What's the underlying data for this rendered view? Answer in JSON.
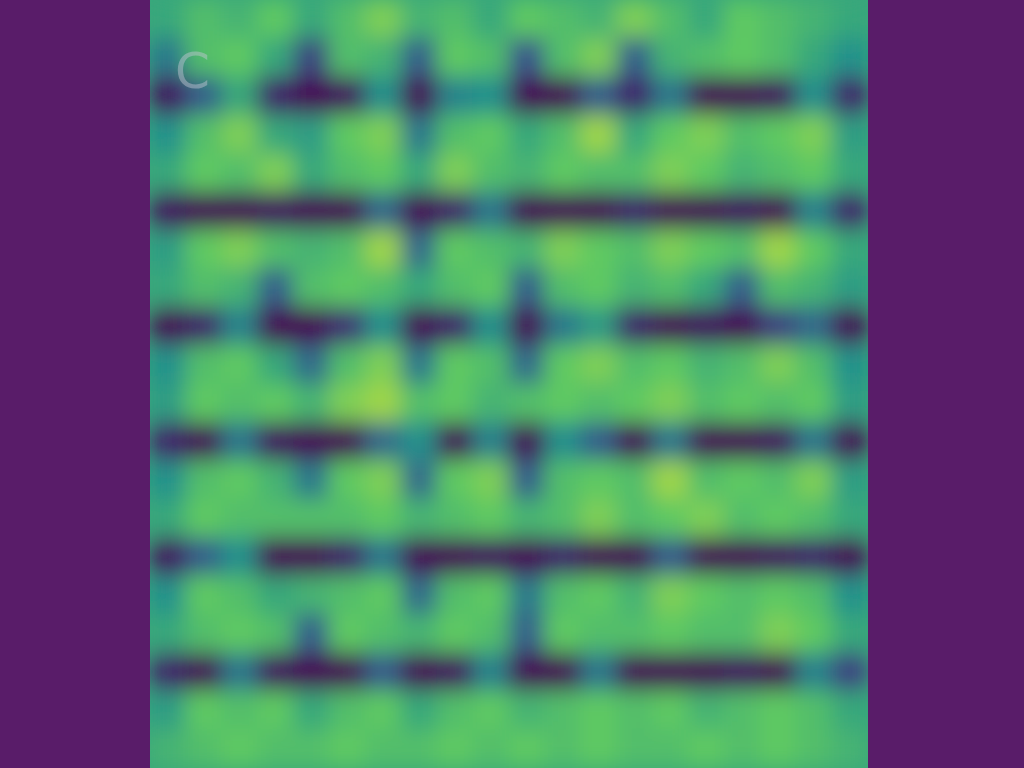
{
  "chart_data": {
    "type": "heatmap",
    "title": "C",
    "zlim": [
      0,
      1
    ],
    "cells": [
      [
        0.6,
        0.7,
        0.65,
        0.75,
        0.6,
        0.7,
        0.8,
        0.65,
        0.7,
        0.6,
        0.75,
        0.7,
        0.65,
        0.8,
        0.7,
        0.6,
        0.75,
        0.7,
        0.65,
        0.6
      ],
      [
        0.4,
        0.7,
        0.75,
        0.6,
        0.2,
        0.7,
        0.65,
        0.3,
        0.75,
        0.7,
        0.25,
        0.7,
        0.8,
        0.3,
        0.65,
        0.7,
        0.75,
        0.7,
        0.6,
        0.5
      ],
      [
        0.05,
        0.3,
        0.6,
        0.1,
        0,
        0.05,
        0.5,
        0,
        0.45,
        0.5,
        0,
        0,
        0.3,
        0.1,
        0.4,
        0,
        0,
        0.05,
        0.5,
        0.1
      ],
      [
        0.5,
        0.7,
        0.8,
        0.6,
        0.55,
        0.75,
        0.8,
        0.4,
        0.7,
        0.75,
        0.6,
        0.7,
        0.85,
        0.6,
        0.75,
        0.8,
        0.7,
        0.75,
        0.8,
        0.55
      ],
      [
        0.6,
        0.75,
        0.7,
        0.8,
        0.6,
        0.7,
        0.75,
        0.6,
        0.8,
        0.7,
        0.65,
        0.75,
        0.7,
        0.7,
        0.8,
        0.75,
        0.65,
        0.7,
        0.75,
        0.6
      ],
      [
        0.05,
        0,
        0,
        0.05,
        0,
        0,
        0.35,
        0,
        0.1,
        0.4,
        0,
        0,
        0,
        0.1,
        0,
        0,
        0.05,
        0,
        0.45,
        0.1
      ],
      [
        0.55,
        0.75,
        0.8,
        0.7,
        0.65,
        0.7,
        0.85,
        0.35,
        0.75,
        0.7,
        0.65,
        0.8,
        0.75,
        0.7,
        0.8,
        0.75,
        0.7,
        0.85,
        0.75,
        0.6
      ],
      [
        0.6,
        0.7,
        0.65,
        0.3,
        0.7,
        0.75,
        0.7,
        0.6,
        0.7,
        0.75,
        0.3,
        0.7,
        0.75,
        0.65,
        0.7,
        0.6,
        0.3,
        0.7,
        0.65,
        0.55
      ],
      [
        0,
        0.1,
        0.45,
        0,
        0,
        0.15,
        0.5,
        0,
        0.1,
        0.5,
        0,
        0.4,
        0.55,
        0.1,
        0,
        0.05,
        0,
        0.2,
        0.35,
        0
      ],
      [
        0.5,
        0.7,
        0.75,
        0.6,
        0.35,
        0.7,
        0.8,
        0.4,
        0.75,
        0.7,
        0.35,
        0.75,
        0.8,
        0.7,
        0.75,
        0.65,
        0.7,
        0.8,
        0.7,
        0.5
      ],
      [
        0.55,
        0.75,
        0.7,
        0.75,
        0.65,
        0.8,
        0.85,
        0.7,
        0.75,
        0.65,
        0.7,
        0.75,
        0.7,
        0.75,
        0.8,
        0.7,
        0.75,
        0.7,
        0.75,
        0.55
      ],
      [
        0.1,
        0,
        0.4,
        0.05,
        0,
        0,
        0.35,
        0.5,
        0,
        0.45,
        0,
        0.5,
        0.3,
        0,
        0.4,
        0,
        0,
        0.05,
        0.4,
        0
      ],
      [
        0.5,
        0.7,
        0.75,
        0.65,
        0.4,
        0.75,
        0.8,
        0.35,
        0.75,
        0.8,
        0.3,
        0.7,
        0.75,
        0.7,
        0.85,
        0.7,
        0.75,
        0.7,
        0.8,
        0.55
      ],
      [
        0.6,
        0.75,
        0.7,
        0.7,
        0.7,
        0.7,
        0.75,
        0.65,
        0.7,
        0.75,
        0.65,
        0.7,
        0.8,
        0.7,
        0.75,
        0.8,
        0.7,
        0.75,
        0.7,
        0.6
      ],
      [
        0.05,
        0.3,
        0.5,
        0,
        0,
        0.1,
        0.4,
        0,
        0,
        0.05,
        0,
        0.1,
        0,
        0,
        0.3,
        0,
        0,
        0.05,
        0.1,
        0
      ],
      [
        0.5,
        0.75,
        0.7,
        0.6,
        0.65,
        0.7,
        0.75,
        0.35,
        0.7,
        0.75,
        0.4,
        0.7,
        0.75,
        0.65,
        0.8,
        0.75,
        0.7,
        0.75,
        0.7,
        0.5
      ],
      [
        0.6,
        0.7,
        0.75,
        0.7,
        0.3,
        0.75,
        0.7,
        0.65,
        0.75,
        0.7,
        0.3,
        0.75,
        0.7,
        0.7,
        0.75,
        0.7,
        0.7,
        0.8,
        0.75,
        0.6
      ],
      [
        0.1,
        0,
        0.4,
        0.05,
        0,
        0,
        0.3,
        0,
        0.05,
        0.45,
        0,
        0,
        0.4,
        0,
        0,
        0,
        0.05,
        0,
        0.45,
        0.2
      ],
      [
        0.55,
        0.75,
        0.7,
        0.75,
        0.6,
        0.7,
        0.75,
        0.6,
        0.7,
        0.75,
        0.65,
        0.7,
        0.75,
        0.7,
        0.75,
        0.65,
        0.7,
        0.75,
        0.7,
        0.6
      ],
      [
        0.65,
        0.7,
        0.75,
        0.7,
        0.7,
        0.75,
        0.7,
        0.7,
        0.75,
        0.7,
        0.75,
        0.7,
        0.75,
        0.7,
        0.7,
        0.75,
        0.7,
        0.75,
        0.7,
        0.65
      ]
    ]
  }
}
